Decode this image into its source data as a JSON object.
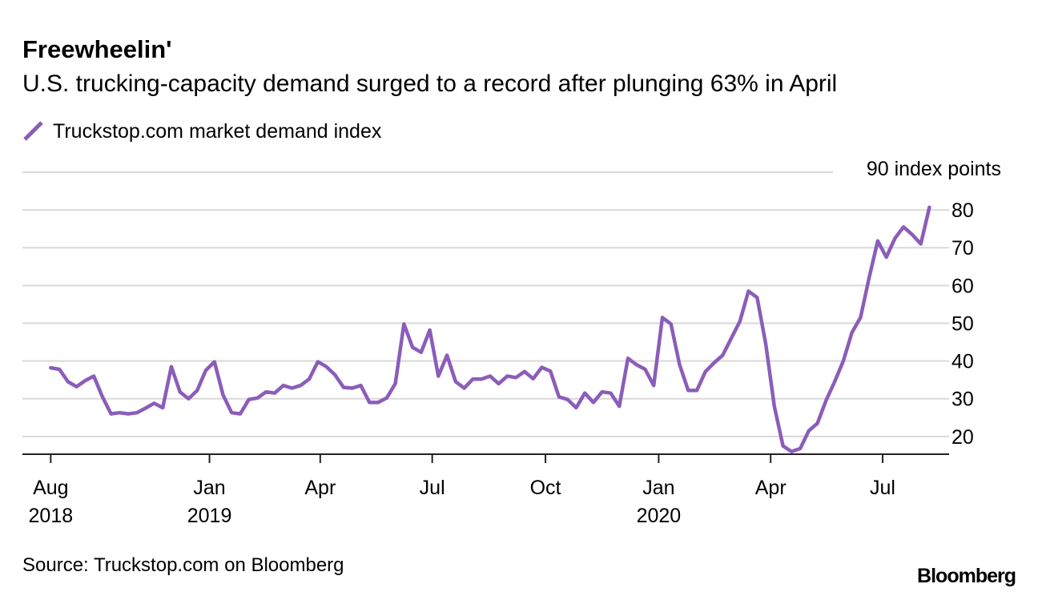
{
  "chart_data": {
    "type": "line",
    "title": "Freewheelin'",
    "subtitle": "U.S. trucking-capacity demand surged to a record after plunging 63% in April",
    "source": "Source: Truckstop.com on Bloomberg",
    "brand": "Bloomberg",
    "x": [
      "2018-08-25",
      "2018-09-01",
      "2018-09-08",
      "2018-09-15",
      "2018-09-22",
      "2018-09-29",
      "2018-10-06",
      "2018-10-13",
      "2018-10-20",
      "2018-10-27",
      "2018-11-03",
      "2018-11-10",
      "2018-11-17",
      "2018-11-24",
      "2018-12-01",
      "2018-12-08",
      "2018-12-15",
      "2018-12-22",
      "2018-12-29",
      "2019-01-05",
      "2019-01-12",
      "2019-01-19",
      "2019-01-26",
      "2019-02-02",
      "2019-02-09",
      "2019-02-16",
      "2019-02-23",
      "2019-03-02",
      "2019-03-09",
      "2019-03-16",
      "2019-03-23",
      "2019-03-30",
      "2019-04-06",
      "2019-04-13",
      "2019-04-20",
      "2019-04-27",
      "2019-05-04",
      "2019-05-11",
      "2019-05-18",
      "2019-05-25",
      "2019-06-01",
      "2019-06-08",
      "2019-06-15",
      "2019-06-22",
      "2019-06-29",
      "2019-07-06",
      "2019-07-13",
      "2019-07-20",
      "2019-07-27",
      "2019-08-03",
      "2019-08-10",
      "2019-08-17",
      "2019-08-24",
      "2019-08-31",
      "2019-09-07",
      "2019-09-14",
      "2019-09-21",
      "2019-09-28",
      "2019-10-05",
      "2019-10-12",
      "2019-10-19",
      "2019-10-26",
      "2019-11-02",
      "2019-11-09",
      "2019-11-16",
      "2019-11-23",
      "2019-11-30",
      "2019-12-07",
      "2019-12-14",
      "2019-12-21",
      "2019-12-28",
      "2020-01-04",
      "2020-01-11",
      "2020-01-18",
      "2020-01-25",
      "2020-02-01",
      "2020-02-08",
      "2020-02-15",
      "2020-02-22",
      "2020-02-29",
      "2020-03-07",
      "2020-03-14",
      "2020-03-21",
      "2020-03-28",
      "2020-04-04",
      "2020-04-11",
      "2020-04-18",
      "2020-04-25",
      "2020-05-02",
      "2020-05-09",
      "2020-05-16",
      "2020-05-23",
      "2020-05-30",
      "2020-06-06",
      "2020-06-13",
      "2020-06-20",
      "2020-06-27",
      "2020-07-04",
      "2020-07-11",
      "2020-07-18",
      "2020-07-25",
      "2020-08-01",
      "2020-08-08"
    ],
    "series": [
      {
        "name": "Truckstop.com market demand index",
        "color": "#8b5db9",
        "values": [
          38.2,
          37.8,
          34.5,
          33.2,
          34.8,
          36,
          30.5,
          26,
          26.3,
          26,
          26.3,
          27.5,
          28.8,
          27.6,
          38.5,
          31.8,
          30,
          32.2,
          37.5,
          39.8,
          31,
          26.3,
          26,
          29.8,
          30.2,
          31.8,
          31.5,
          33.5,
          32.8,
          33.5,
          35.2,
          39.8,
          38.5,
          36.3,
          33,
          32.8,
          33.5,
          29,
          29,
          30.2,
          34,
          49.8,
          43.6,
          42.3,
          48.2,
          36,
          41.5,
          34.5,
          32.8,
          35.2,
          35.2,
          36,
          34,
          36,
          35.6,
          37.2,
          35.3,
          38.3,
          37.3,
          30.5,
          29.8,
          27.6,
          31.5,
          29,
          31.8,
          31.5,
          28,
          40.7,
          39,
          37.8,
          33.5,
          51.5,
          49.8,
          39,
          32.2,
          32.2,
          37.2,
          39.5,
          41.5,
          46,
          50.5,
          58.5,
          56.8,
          44.5,
          28,
          17.5,
          16,
          16.8,
          21.5,
          23.5,
          29.5,
          34.5,
          40,
          47.5,
          51.5,
          62,
          71.8,
          67.5,
          72.5,
          75.5,
          73.5,
          71,
          80.7
        ]
      }
    ],
    "xlim": [
      "2018-08-02",
      "2020-08-24"
    ],
    "xticks": [
      {
        "value": "2018-08-25",
        "label": [
          "Aug",
          "2018"
        ]
      },
      {
        "value": "2019-01-01",
        "label": [
          "Jan",
          "2019"
        ]
      },
      {
        "value": "2019-04-01",
        "label": [
          "Apr"
        ]
      },
      {
        "value": "2019-07-01",
        "label": [
          "Jul"
        ]
      },
      {
        "value": "2019-10-01",
        "label": [
          "Oct"
        ]
      },
      {
        "value": "2020-01-01",
        "label": [
          "Jan",
          "2020"
        ]
      },
      {
        "value": "2020-04-01",
        "label": [
          "Apr"
        ]
      },
      {
        "value": "2020-07-01",
        "label": [
          "Jul"
        ]
      }
    ],
    "ylim": [
      15.3,
      90
    ],
    "yticks": [
      20,
      30,
      40,
      50,
      60,
      70,
      80,
      {
        "value": 90,
        "label": "90 index points"
      }
    ],
    "grid": true
  }
}
